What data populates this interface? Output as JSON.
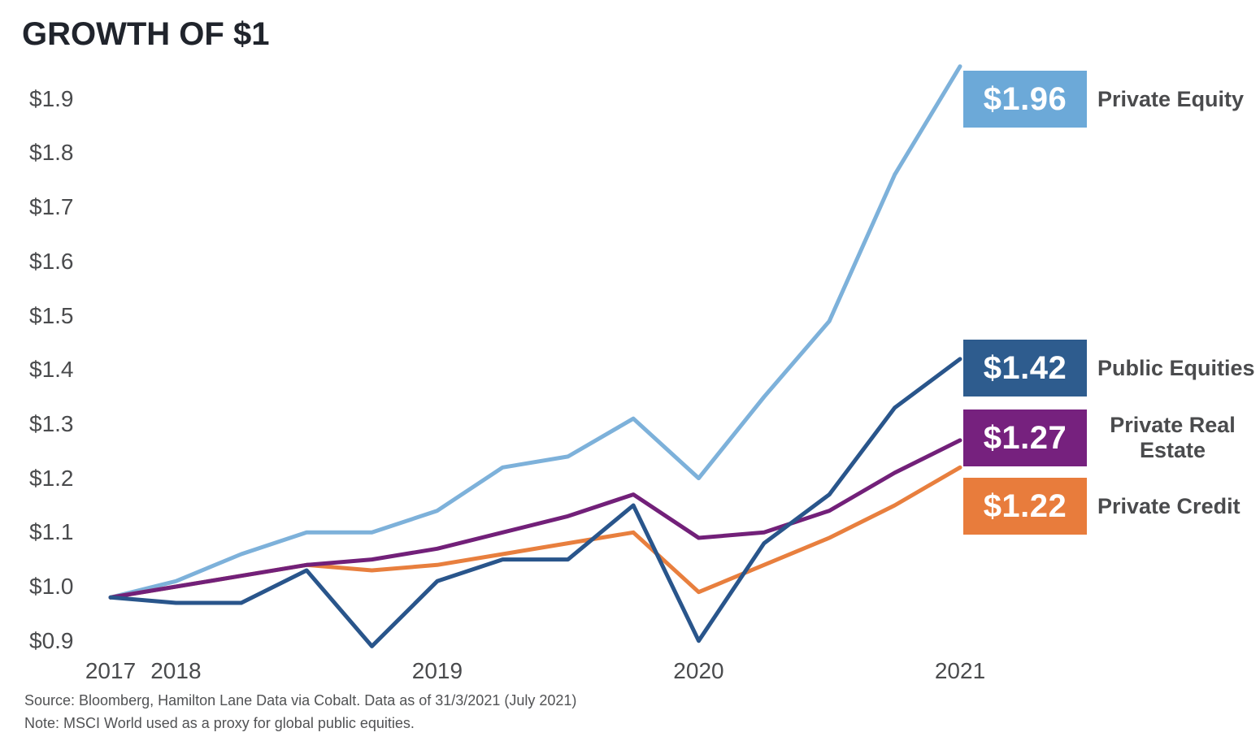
{
  "title": "GROWTH OF $1",
  "footer": {
    "source": "Source: Bloomberg, Hamilton Lane Data via Cobalt. Data as of 31/3/2021 (July 2021)",
    "note": "Note: MSCI World used as a proxy for global public equities."
  },
  "chart_data": {
    "type": "line",
    "title": "GROWTH OF $1",
    "x_unit": "quarterly",
    "grid": false,
    "ylim": [
      0.85,
      2.0
    ],
    "categories": [
      "2017 Q4",
      "2018 Q1",
      "2018 Q2",
      "2018 Q3",
      "2018 Q4",
      "2019 Q1",
      "2019 Q2",
      "2019 Q3",
      "2019 Q4",
      "2020 Q1",
      "2020 Q2",
      "2020 Q3",
      "2020 Q4",
      "2021 Q1"
    ],
    "x_ticks": [
      {
        "label": "2017",
        "index": 0
      },
      {
        "label": "2018",
        "index": 1
      },
      {
        "label": "2019",
        "index": 5
      },
      {
        "label": "2020",
        "index": 9
      },
      {
        "label": "2021",
        "index": 13
      }
    ],
    "y_ticks": [
      {
        "label": "$1.9",
        "value": 1.9
      },
      {
        "label": "$1.8",
        "value": 1.8
      },
      {
        "label": "$1.7",
        "value": 1.7
      },
      {
        "label": "$1.6",
        "value": 1.6
      },
      {
        "label": "$1.5",
        "value": 1.5
      },
      {
        "label": "$1.4",
        "value": 1.4
      },
      {
        "label": "$1.3",
        "value": 1.3
      },
      {
        "label": "$1.2",
        "value": 1.2
      },
      {
        "label": "$1.1",
        "value": 1.1
      },
      {
        "label": "$1.0",
        "value": 1.0
      },
      {
        "label": "$0.9",
        "value": 0.9
      }
    ],
    "series": [
      {
        "name": "Private Equity",
        "final_label": "$1.96",
        "line_color": "#7db1da",
        "box_color": "#6ca9d8",
        "label_lines": [
          "Private Equity"
        ],
        "values": [
          0.98,
          1.01,
          1.06,
          1.1,
          1.1,
          1.14,
          1.22,
          1.24,
          1.31,
          1.2,
          1.35,
          1.49,
          1.76,
          1.96
        ]
      },
      {
        "name": "Public Equities",
        "final_label": "$1.42",
        "line_color": "#29558b",
        "box_color": "#2e5c8e",
        "label_lines": [
          "Public Equities"
        ],
        "values": [
          0.98,
          0.97,
          0.97,
          1.03,
          0.89,
          1.01,
          1.05,
          1.05,
          1.15,
          0.9,
          1.08,
          1.17,
          1.33,
          1.42
        ]
      },
      {
        "name": "Private Real Estate",
        "final_label": "$1.27",
        "line_color": "#722079",
        "box_color": "#76217e",
        "label_lines": [
          "Private Real",
          "Estate"
        ],
        "values": [
          0.98,
          1.0,
          1.02,
          1.04,
          1.05,
          1.07,
          1.1,
          1.13,
          1.17,
          1.09,
          1.1,
          1.14,
          1.21,
          1.27
        ]
      },
      {
        "name": "Private Credit",
        "final_label": "$1.22",
        "line_color": "#e87f3e",
        "box_color": "#e87c3c",
        "label_lines": [
          "Private Credit"
        ],
        "values": [
          0.98,
          1.0,
          1.02,
          1.04,
          1.03,
          1.04,
          1.06,
          1.08,
          1.1,
          0.99,
          1.04,
          1.09,
          1.15,
          1.22
        ]
      }
    ]
  }
}
